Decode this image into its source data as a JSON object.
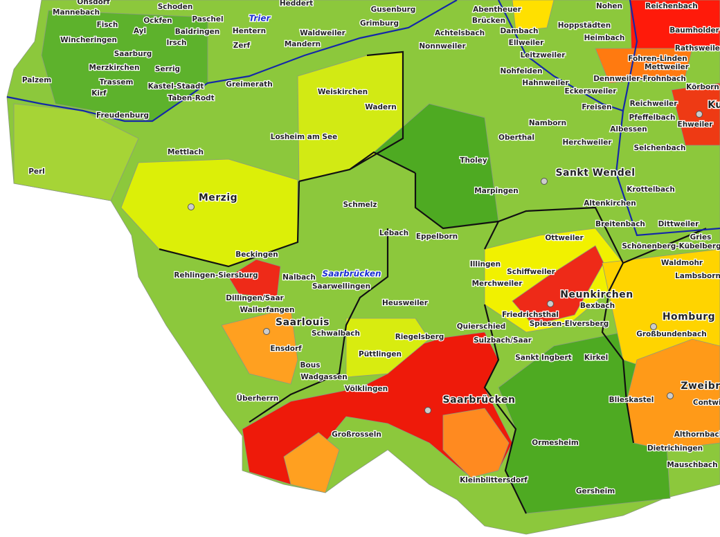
{
  "map": {
    "cities": [
      "Trier",
      "Saarbrücken"
    ],
    "district_seats": [
      "Merzig",
      "Saarlouis",
      "Saarbrücken",
      "Neunkirchen",
      "Sankt Wendel",
      "Homburg",
      "Zweibr",
      "Ku"
    ],
    "places": [
      "Onsdorf",
      "Schoden",
      "Heddert",
      "Mannebach",
      "Ockfen",
      "Paschel",
      "Fisch",
      "Ayl",
      "Baldringen",
      "Hentern",
      "Waldweiler",
      "Wincheringen",
      "Irsch",
      "Zerf",
      "Mandern",
      "Saarburg",
      "Merzkirchen",
      "Serrig",
      "Palzem",
      "Trassem",
      "Kastel-Staadt",
      "Greimerath",
      "Kirf",
      "Taben-Rodt",
      "Freudenburg",
      "Gusenburg",
      "Grimburg",
      "Abentheuer",
      "Brücken",
      "Dambach",
      "Hoppstädten",
      "Nohen",
      "Reichenbach",
      "Achtelsbach",
      "Ellweiler",
      "Heimbach",
      "Baumholder",
      "Nonnweiler",
      "Leitzweiler",
      "Rathsweiler",
      "Fohren-Linden",
      "Mettweiler",
      "Nohfelden",
      "Hahnweiler",
      "Dennweiler-Frohnbach",
      "Eckersweiler",
      "Körborn",
      "Weiskirchen",
      "Wadern",
      "Freisen",
      "Reichweiler",
      "Pfeffelbach",
      "Ehweiler",
      "Namborn",
      "Albessen",
      "Losheim am See",
      "Oberthal",
      "Herchweiler",
      "Selchenbach",
      "Mettlach",
      "Tholey",
      "Perl",
      "Marpingen",
      "Krottelbach",
      "Altenkirchen",
      "Schmelz",
      "Breitenbach",
      "Dittweiler",
      "Lebach",
      "Eppelborn",
      "Ottweiler",
      "Schönenberg-Kübelberg",
      "Gries",
      "Beckingen",
      "Illingen",
      "Waldmohr",
      "Rehlingen-Siersburg",
      "Nalbach",
      "Schiffweiler",
      "Lambsborn",
      "Saarwellingen",
      "Merchweiler",
      "Dillingen/Saar",
      "Bexbach",
      "Heusweiler",
      "Friedrichsthal",
      "Wallerfangen",
      "Quierschied",
      "Spiesen-Elversberg",
      "Großbundenbach",
      "Schwalbach",
      "Riegelsberg",
      "Sulzbach/Saar",
      "Ensdorf",
      "Bous",
      "Sankt Ingbert",
      "Kirkel",
      "Püttlingen",
      "Wadgassen",
      "Völklingen",
      "Überherrn",
      "Blieskastel",
      "Contwig",
      "Großrosseln",
      "Althornbach",
      "Ormesheim",
      "Dietrichingen",
      "Mauschbach",
      "Kleinblittersdorf",
      "Gersheim"
    ]
  }
}
